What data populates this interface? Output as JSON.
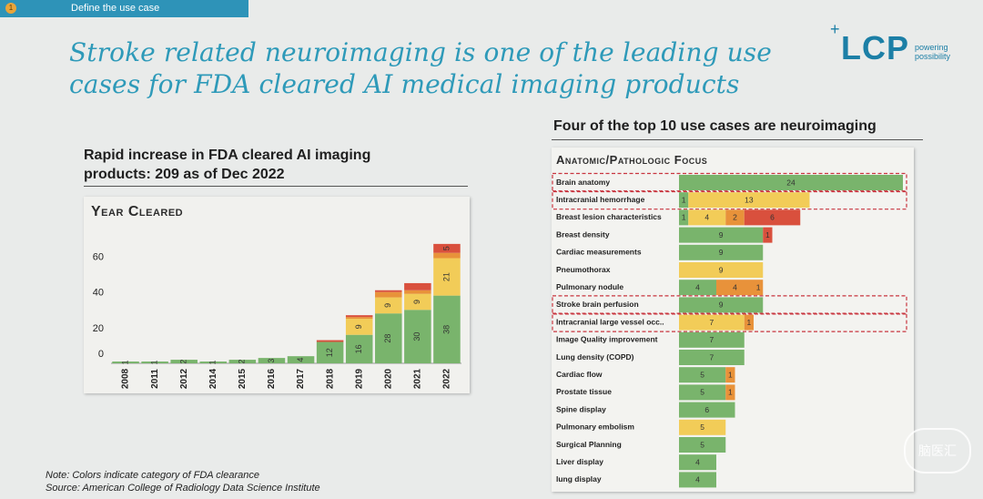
{
  "header": {
    "step_number": "1",
    "step_label": "Define the use case"
  },
  "title": "Stroke related neuroimaging is one of the leading use cases for FDA cleared AI medical imaging products",
  "logo": {
    "text": "LCP",
    "plus": "+",
    "tag_line1": "powering",
    "tag_line2": "possibility"
  },
  "left": {
    "subtitle_line1": "Rapid increase in FDA cleared AI imaging",
    "subtitle_line2": "products: 209 as of Dec 2022",
    "panel_title": "Year Cleared"
  },
  "right": {
    "subtitle": "Four of the top 10 use cases are neuroimaging",
    "panel_title": "Anatomic/Pathologic Focus"
  },
  "note_line1": "Note: Colors indicate category of FDA clearance",
  "note_line2": "Source: American College of Radiology Data Science Institute",
  "watermark": "脑医汇",
  "colors": {
    "green": "#79b46c",
    "yellow": "#f2cc58",
    "orange": "#e8923a",
    "red": "#d9503d",
    "highlight": "#c8343e"
  },
  "chart_data": [
    {
      "type": "bar",
      "stacked": true,
      "title": "Year Cleared",
      "categories": [
        "2008",
        "2011",
        "2012",
        "2014",
        "2015",
        "2016",
        "2017",
        "2018",
        "2019",
        "2020",
        "2021",
        "2022"
      ],
      "ylim": [
        0,
        70
      ],
      "yticks": [
        0,
        20,
        40,
        60
      ],
      "series": [
        {
          "color": "green",
          "values": [
            1,
            1,
            2,
            1,
            2,
            3,
            4,
            12,
            16,
            28,
            30,
            38
          ]
        },
        {
          "color": "yellow",
          "values": [
            0,
            0,
            0,
            0,
            0,
            0,
            0,
            0,
            9,
            9,
            9,
            21
          ]
        },
        {
          "color": "orange",
          "values": [
            0,
            0,
            0,
            0,
            0,
            0,
            0,
            0,
            1,
            3,
            2,
            3
          ]
        },
        {
          "color": "red",
          "values": [
            0,
            0,
            0,
            0,
            0,
            0,
            0,
            1,
            1,
            1,
            4,
            5
          ]
        }
      ],
      "segment_labels": [
        [
          "1",
          "1",
          "2",
          "1",
          "2",
          "3",
          "4",
          "12",
          "16",
          "28",
          "30",
          "38"
        ],
        [
          "",
          "",
          "",
          "",
          "",
          "",
          "",
          "",
          "9",
          "9",
          "9",
          "21"
        ],
        [
          "",
          "",
          "",
          "",
          "",
          "",
          "",
          "",
          "",
          "",
          "",
          ""
        ],
        [
          "",
          "",
          "",
          "",
          "",
          "",
          "",
          "",
          "",
          "",
          "",
          "5"
        ]
      ]
    },
    {
      "type": "bar",
      "orientation": "horizontal",
      "stacked": true,
      "title": "Anatomic/Pathologic Focus",
      "categories": [
        "Brain anatomy",
        "Intracranial hemorrhage",
        "Breast lesion characteristics",
        "Breast density",
        "Cardiac measurements",
        "Pneumothorax",
        "Pulmonary nodule",
        "Stroke brain perfusion",
        "Intracranial large vessel occ..",
        "Image Quality improvement",
        "Lung density (COPD)",
        "Cardiac flow",
        "Prostate tissue",
        "Spine display",
        "Pulmonary embolism",
        "Surgical Planning",
        "Liver display",
        "lung display"
      ],
      "highlighted": [
        "Brain anatomy",
        "Intracranial hemorrhage",
        "Stroke brain perfusion",
        "Intracranial large vessel occ.."
      ],
      "rows": [
        [
          {
            "color": "green",
            "value": 24
          }
        ],
        [
          {
            "color": "green",
            "value": 1
          },
          {
            "color": "yellow",
            "value": 13
          }
        ],
        [
          {
            "color": "green",
            "value": 1
          },
          {
            "color": "yellow",
            "value": 4
          },
          {
            "color": "orange",
            "value": 2
          },
          {
            "color": "red",
            "value": 6
          }
        ],
        [
          {
            "color": "green",
            "value": 9
          },
          {
            "color": "red",
            "value": 1
          }
        ],
        [
          {
            "color": "green",
            "value": 9
          }
        ],
        [
          {
            "color": "yellow",
            "value": 9
          }
        ],
        [
          {
            "color": "green",
            "value": 4
          },
          {
            "color": "orange",
            "value": 4
          },
          {
            "color": "orange",
            "value": 1
          }
        ],
        [
          {
            "color": "green",
            "value": 9
          }
        ],
        [
          {
            "color": "yellow",
            "value": 7
          },
          {
            "color": "orange",
            "value": 1
          }
        ],
        [
          {
            "color": "green",
            "value": 7
          }
        ],
        [
          {
            "color": "green",
            "value": 7
          }
        ],
        [
          {
            "color": "green",
            "value": 5
          },
          {
            "color": "orange",
            "value": 1
          }
        ],
        [
          {
            "color": "green",
            "value": 5
          },
          {
            "color": "orange",
            "value": 1
          }
        ],
        [
          {
            "color": "green",
            "value": 6
          }
        ],
        [
          {
            "color": "yellow",
            "value": 5
          }
        ],
        [
          {
            "color": "green",
            "value": 5
          }
        ],
        [
          {
            "color": "green",
            "value": 4
          }
        ],
        [
          {
            "color": "green",
            "value": 4
          }
        ]
      ]
    }
  ]
}
